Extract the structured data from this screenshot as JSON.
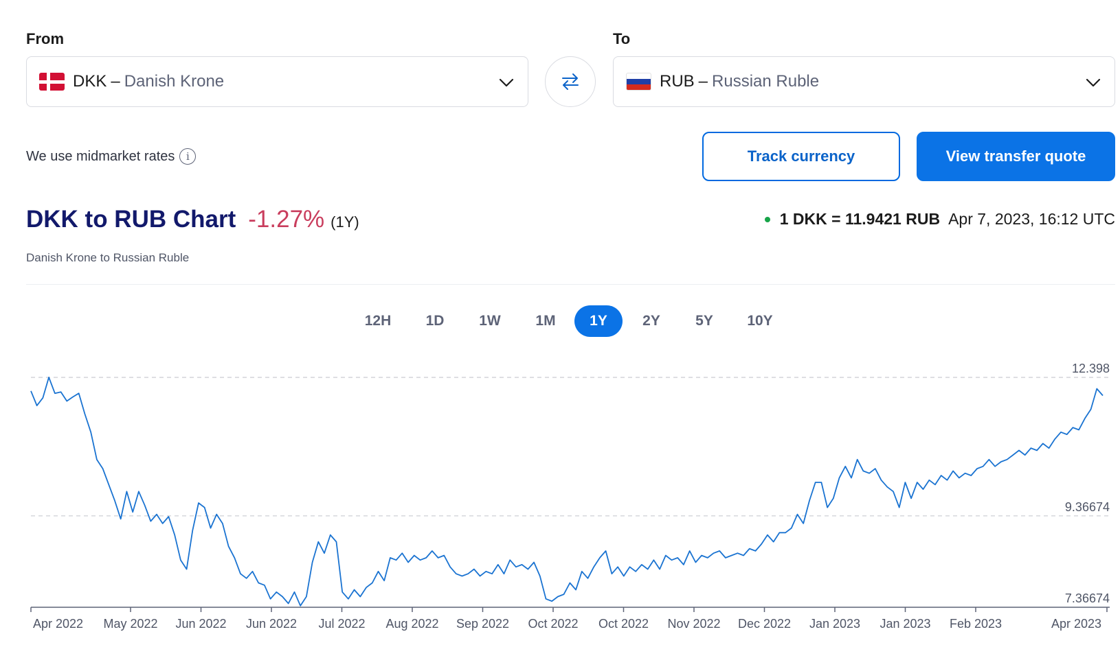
{
  "from": {
    "label": "From",
    "code": "DKK",
    "separator": "–",
    "name": "Danish Krone",
    "flag": "flag-dk-icon"
  },
  "to": {
    "label": "To",
    "code": "RUB",
    "separator": "–",
    "name": "Russian Ruble",
    "flag": "flag-ru-icon"
  },
  "swap_icon": "swap-arrows-icon",
  "midmarket_text": "We use midmarket rates",
  "info_glyph": "i",
  "buttons": {
    "track": "Track currency",
    "quote": "View transfer quote"
  },
  "chart_header": {
    "title": "DKK to RUB Chart",
    "change": "-1.27%",
    "period": "(1Y)",
    "subtitle": "Danish Krone to Russian Ruble"
  },
  "rate": {
    "value": "1 DKK = 11.9421 RUB",
    "timestamp": "Apr 7, 2023, 16:12 UTC"
  },
  "tabs": [
    "12H",
    "1D",
    "1W",
    "1M",
    "1Y",
    "2Y",
    "5Y",
    "10Y"
  ],
  "active_tab": "1Y",
  "colors": {
    "accent": "#0b73e6",
    "line": "#1a73d1",
    "title": "#12196b",
    "negative": "#c93d5d",
    "live_dot": "#17a449"
  },
  "chart_data": {
    "type": "line",
    "title": "DKK to RUB Chart",
    "subtitle": "Danish Krone to Russian Ruble",
    "xlabel": "",
    "ylabel": "",
    "ylim": [
      7.36674,
      12.398
    ],
    "yticks": [
      "12.398",
      "9.36674",
      "7.36674"
    ],
    "grid": true,
    "x_tick_labels": [
      "Apr 2022",
      "May 2022",
      "Jun 2022",
      "Jun 2022",
      "Jul 2022",
      "Aug 2022",
      "Sep 2022",
      "Oct 2022",
      "Oct 2022",
      "Nov 2022",
      "Dec 2022",
      "Jan 2023",
      "Jan 2023",
      "Feb 2023",
      "Apr 2023"
    ],
    "series": [
      {
        "values": [
          12.1,
          11.78,
          11.95,
          12.4,
          12.05,
          12.08,
          11.88,
          11.97,
          12.05,
          11.6,
          11.2,
          10.6,
          10.4,
          10.05,
          9.7,
          9.3,
          9.9,
          9.45,
          9.9,
          9.6,
          9.25,
          9.4,
          9.2,
          9.35,
          8.95,
          8.4,
          8.2,
          9.05,
          9.65,
          9.55,
          9.1,
          9.4,
          9.2,
          8.7,
          8.45,
          8.1,
          8.0,
          8.15,
          7.9,
          7.85,
          7.55,
          7.7,
          7.6,
          7.45,
          7.7,
          7.4,
          7.6,
          8.35,
          8.8,
          8.55,
          8.95,
          8.8,
          7.7,
          7.55,
          7.75,
          7.6,
          7.8,
          7.9,
          8.15,
          7.95,
          8.45,
          8.4,
          8.55,
          8.35,
          8.5,
          8.4,
          8.45,
          8.6,
          8.45,
          8.5,
          8.25,
          8.1,
          8.05,
          8.1,
          8.2,
          8.05,
          8.15,
          8.1,
          8.3,
          8.1,
          8.4,
          8.25,
          8.3,
          8.2,
          8.35,
          8.05,
          7.55,
          7.5,
          7.6,
          7.65,
          7.9,
          7.75,
          8.15,
          8.0,
          8.25,
          8.45,
          8.6,
          8.1,
          8.25,
          8.05,
          8.25,
          8.15,
          8.3,
          8.2,
          8.4,
          8.2,
          8.5,
          8.4,
          8.45,
          8.3,
          8.6,
          8.35,
          8.5,
          8.45,
          8.55,
          8.6,
          8.45,
          8.5,
          8.55,
          8.5,
          8.65,
          8.6,
          8.75,
          8.95,
          8.8,
          9.0,
          9.0,
          9.1,
          9.4,
          9.2,
          9.7,
          10.1,
          10.1,
          9.55,
          9.75,
          10.2,
          10.45,
          10.2,
          10.6,
          10.35,
          10.3,
          10.4,
          10.15,
          10.0,
          9.9,
          9.55,
          10.1,
          9.75,
          10.1,
          9.95,
          10.15,
          10.05,
          10.25,
          10.15,
          10.35,
          10.2,
          10.3,
          10.25,
          10.4,
          10.45,
          10.6,
          10.45,
          10.55,
          10.6,
          10.7,
          10.8,
          10.7,
          10.85,
          10.8,
          10.95,
          10.85,
          11.05,
          11.2,
          11.15,
          11.3,
          11.25,
          11.5,
          11.7,
          12.15,
          12.0
        ]
      }
    ]
  }
}
